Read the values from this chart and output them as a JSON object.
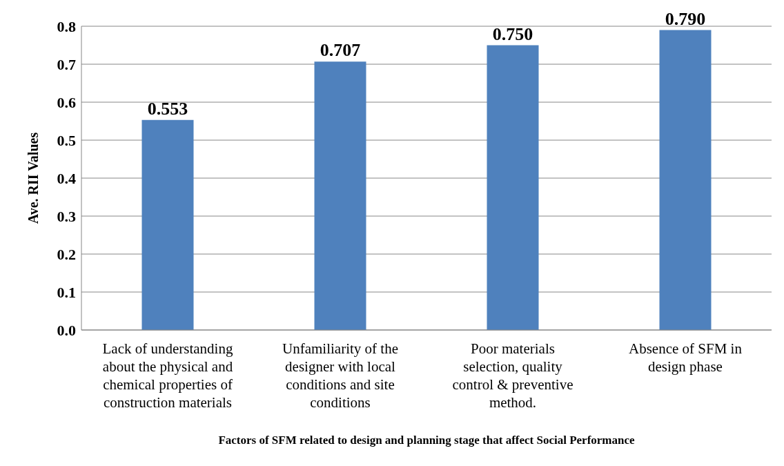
{
  "chart_data": {
    "type": "bar",
    "categories": [
      "Lack of understanding about the physical and chemical properties of construction materials",
      "Unfamiliarity of the designer with local conditions and site conditions",
      "Poor materials selection, quality control & preventive method.",
      "Absence of SFM in design phase"
    ],
    "values": [
      0.553,
      0.707,
      0.75,
      0.79
    ],
    "value_labels": [
      "0.553",
      "0.707",
      "0.750",
      "0.790"
    ],
    "color": "#4f81bd",
    "ylim": [
      0,
      0.8
    ],
    "yticks": [
      {
        "value": 0,
        "label": "0.0"
      },
      {
        "value": 0.1,
        "label": "0.1"
      },
      {
        "value": 0.2,
        "label": "0.2"
      },
      {
        "value": 0.3,
        "label": "0.3"
      },
      {
        "value": 0.4,
        "label": "0.4"
      },
      {
        "value": 0.5,
        "label": "0.5"
      },
      {
        "value": 0.6,
        "label": "0.6"
      },
      {
        "value": 0.7,
        "label": "0.7"
      },
      {
        "value": 0.8,
        "label": "0.8"
      }
    ],
    "ylabel": "Ave. RII Values",
    "xlabel": "Factors of SFM related to design and planning stage that affect Social Performance",
    "grid": "y"
  }
}
